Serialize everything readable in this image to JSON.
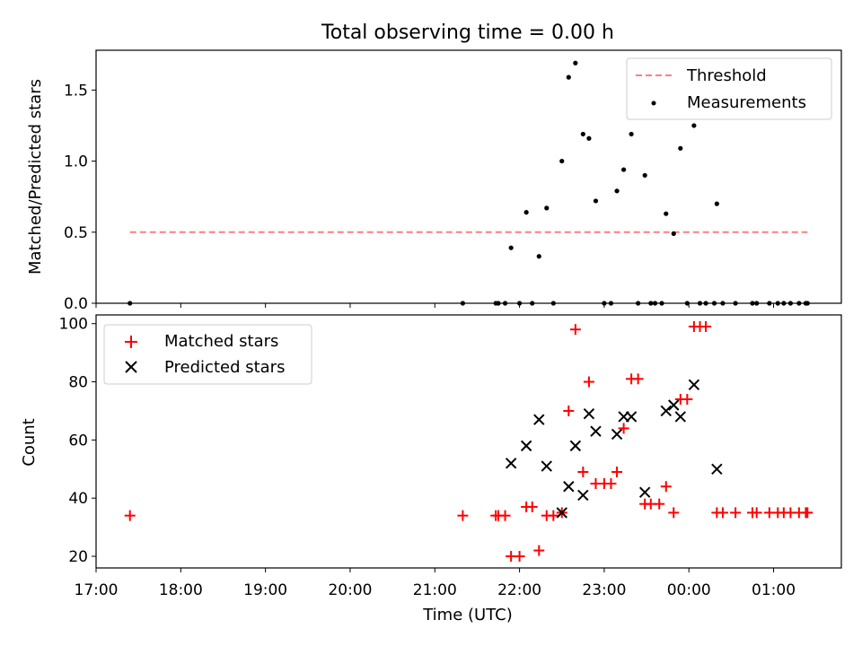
{
  "chart_data": [
    {
      "type": "scatter",
      "title": "Total observing time = 0.00 h",
      "ylabel": "Matched/Predicted stars",
      "xlabel": "",
      "xlim_hours": [
        17.0,
        25.8
      ],
      "ylim": [
        0,
        1.78
      ],
      "yticks": [
        0.0,
        0.5,
        1.0,
        1.5
      ],
      "ytick_labels": [
        "0.0",
        "0.5",
        "1.0",
        "1.5"
      ],
      "legend_position": "top-right",
      "series": [
        {
          "name": "Threshold",
          "kind": "dashed-line",
          "color": "#ff7f7f",
          "x": [
            17.4,
            25.4
          ],
          "y": [
            0.5,
            0.5
          ]
        },
        {
          "name": "Measurements",
          "kind": "points",
          "color": "#000000",
          "points": [
            [
              17.4,
              0.0
            ],
            [
              21.33,
              0.0
            ],
            [
              21.72,
              0.0
            ],
            [
              21.75,
              0.0
            ],
            [
              21.83,
              0.0
            ],
            [
              21.9,
              0.39
            ],
            [
              22.0,
              0.0
            ],
            [
              22.08,
              0.64
            ],
            [
              22.15,
              0.0
            ],
            [
              22.23,
              0.33
            ],
            [
              22.32,
              0.67
            ],
            [
              22.4,
              0.0
            ],
            [
              22.5,
              1.0
            ],
            [
              22.58,
              1.59
            ],
            [
              22.66,
              1.69
            ],
            [
              22.75,
              1.19
            ],
            [
              22.82,
              1.16
            ],
            [
              22.9,
              0.72
            ],
            [
              23.0,
              0.0
            ],
            [
              23.08,
              0.0
            ],
            [
              23.15,
              0.79
            ],
            [
              23.23,
              0.94
            ],
            [
              23.32,
              1.19
            ],
            [
              23.4,
              0.0
            ],
            [
              23.48,
              0.9
            ],
            [
              23.55,
              0.0
            ],
            [
              23.6,
              0.0
            ],
            [
              23.68,
              0.0
            ],
            [
              23.73,
              0.63
            ],
            [
              23.82,
              0.49
            ],
            [
              23.9,
              1.09
            ],
            [
              23.98,
              0.0
            ],
            [
              24.06,
              1.25
            ],
            [
              24.13,
              0.0
            ],
            [
              24.2,
              0.0
            ],
            [
              24.3,
              0.0
            ],
            [
              24.33,
              0.7
            ],
            [
              24.4,
              0.0
            ],
            [
              24.55,
              0.0
            ],
            [
              24.75,
              0.0
            ],
            [
              24.8,
              0.0
            ],
            [
              24.95,
              0.0
            ],
            [
              25.05,
              0.0
            ],
            [
              25.12,
              0.0
            ],
            [
              25.2,
              0.0
            ],
            [
              25.3,
              0.0
            ],
            [
              25.38,
              0.0
            ],
            [
              25.4,
              0.0
            ]
          ]
        }
      ]
    },
    {
      "type": "scatter",
      "title": "",
      "xlabel": "Time (UTC)",
      "ylabel": "Count",
      "xlim_hours": [
        17.0,
        25.8
      ],
      "xticks_hours": [
        17,
        18,
        19,
        20,
        21,
        22,
        23,
        24,
        25
      ],
      "xtick_labels": [
        "17:00",
        "18:00",
        "19:00",
        "20:00",
        "21:00",
        "22:00",
        "23:00",
        "00:00",
        "01:00"
      ],
      "ylim": [
        16,
        103
      ],
      "yticks": [
        20,
        40,
        60,
        80,
        100
      ],
      "ytick_labels": [
        "20",
        "40",
        "60",
        "80",
        "100"
      ],
      "legend_position": "top-left",
      "series": [
        {
          "name": "Matched stars",
          "marker": "plus",
          "color": "#ff0000",
          "points": [
            [
              17.4,
              34
            ],
            [
              21.33,
              34
            ],
            [
              21.72,
              34
            ],
            [
              21.75,
              34
            ],
            [
              21.83,
              34
            ],
            [
              21.9,
              20
            ],
            [
              22.0,
              20
            ],
            [
              22.08,
              37
            ],
            [
              22.15,
              37
            ],
            [
              22.23,
              22
            ],
            [
              22.32,
              34
            ],
            [
              22.4,
              34
            ],
            [
              22.5,
              35
            ],
            [
              22.58,
              70
            ],
            [
              22.66,
              98
            ],
            [
              22.75,
              49
            ],
            [
              22.82,
              80
            ],
            [
              22.9,
              45
            ],
            [
              23.0,
              45
            ],
            [
              23.08,
              45
            ],
            [
              23.15,
              49
            ],
            [
              23.23,
              64
            ],
            [
              23.32,
              81
            ],
            [
              23.4,
              81
            ],
            [
              23.48,
              38
            ],
            [
              23.55,
              38
            ],
            [
              23.65,
              38
            ],
            [
              23.73,
              44
            ],
            [
              23.82,
              35
            ],
            [
              23.9,
              74
            ],
            [
              23.98,
              74
            ],
            [
              24.06,
              99
            ],
            [
              24.13,
              99
            ],
            [
              24.2,
              99
            ],
            [
              24.33,
              35
            ],
            [
              24.4,
              35
            ],
            [
              24.55,
              35
            ],
            [
              24.75,
              35
            ],
            [
              24.8,
              35
            ],
            [
              24.95,
              35
            ],
            [
              25.05,
              35
            ],
            [
              25.12,
              35
            ],
            [
              25.2,
              35
            ],
            [
              25.3,
              35
            ],
            [
              25.38,
              35
            ],
            [
              25.4,
              35
            ]
          ]
        },
        {
          "name": "Predicted stars",
          "marker": "x",
          "color": "#000000",
          "points": [
            [
              21.9,
              52
            ],
            [
              22.08,
              58
            ],
            [
              22.23,
              67
            ],
            [
              22.32,
              51
            ],
            [
              22.5,
              35
            ],
            [
              22.58,
              44
            ],
            [
              22.66,
              58
            ],
            [
              22.75,
              41
            ],
            [
              22.82,
              69
            ],
            [
              22.9,
              63
            ],
            [
              23.15,
              62
            ],
            [
              23.23,
              68
            ],
            [
              23.32,
              68
            ],
            [
              23.48,
              42
            ],
            [
              23.73,
              70
            ],
            [
              23.82,
              72
            ],
            [
              23.9,
              68
            ],
            [
              24.06,
              79
            ],
            [
              24.33,
              50
            ]
          ]
        }
      ]
    }
  ]
}
